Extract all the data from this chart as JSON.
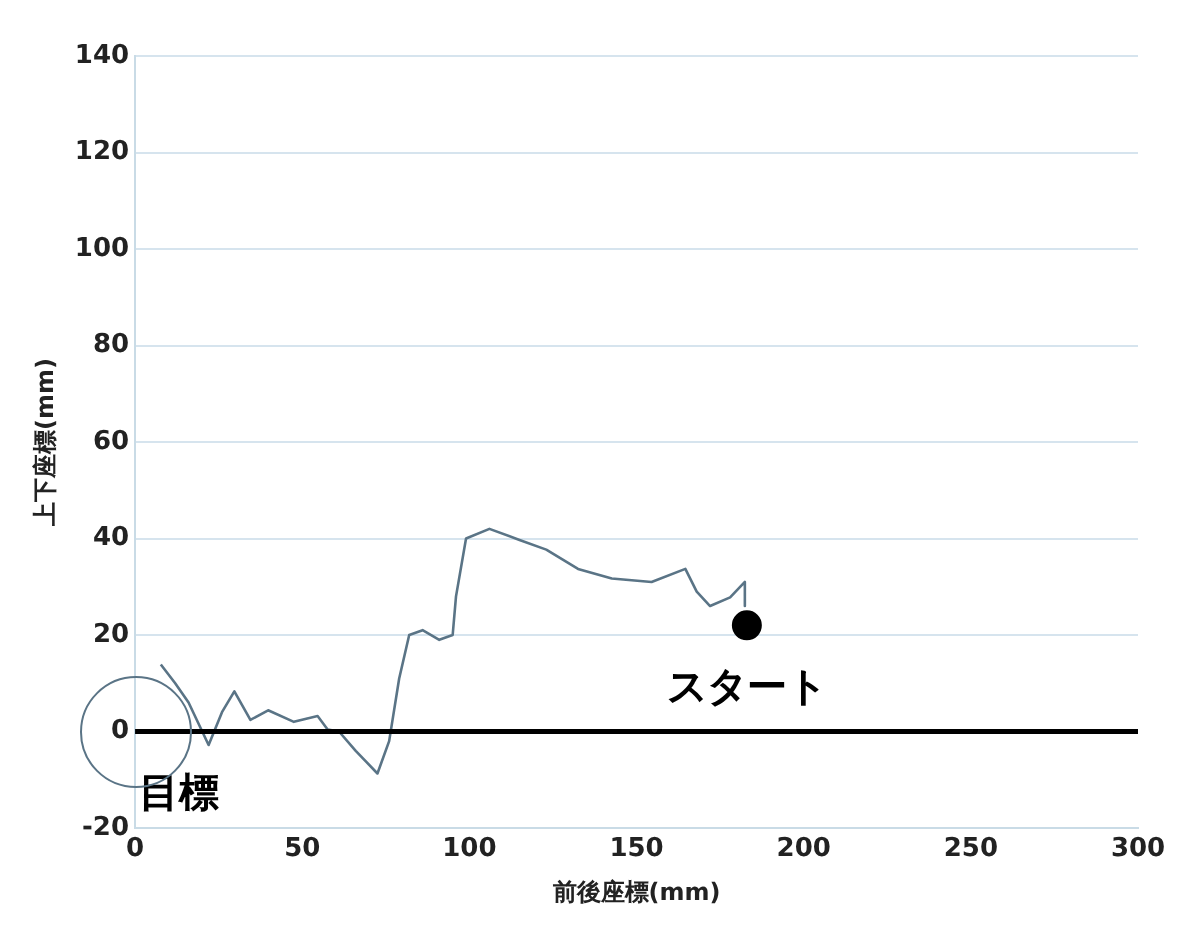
{
  "chart_data": {
    "type": "line",
    "xlabel": "前後座標(mm)",
    "ylabel": "上下座標(mm)",
    "xlim": [
      0,
      300
    ],
    "xticks": [
      0,
      50,
      100,
      150,
      200,
      250,
      300
    ],
    "ylim": [
      -20,
      140
    ],
    "yticks": [
      -20,
      0,
      20,
      40,
      60,
      80,
      100,
      120,
      140
    ],
    "grid": "y",
    "legend": false,
    "series": [
      {
        "type": "line",
        "color": "#5a7486",
        "marker": "none",
        "x": [
          7.7,
          12,
          16,
          22,
          26,
          29.7,
          34.5,
          39.8,
          47.5,
          54.6,
          57.6,
          61,
          66,
          72.5,
          76,
          79,
          82,
          86,
          91,
          95,
          96,
          99,
          106,
          115,
          123,
          132.5,
          142.6,
          154.5,
          164.6,
          168,
          172,
          178,
          182.4,
          182.4
        ],
        "values": [
          13.9,
          10,
          6,
          -2.8,
          4,
          8.3,
          2.4,
          4.4,
          2,
          3.2,
          0.4,
          0,
          -4,
          -8.7,
          -2,
          11,
          20,
          21,
          19,
          20,
          28,
          40,
          42,
          39.7,
          37.7,
          33.7,
          31.7,
          31,
          33.7,
          29,
          26,
          27.8,
          31,
          26
        ]
      },
      {
        "type": "scatter",
        "color": "#000000",
        "marker": "circle",
        "x": [
          183
        ],
        "values": [
          22
        ]
      }
    ],
    "ref_lines": [
      {
        "axis": "y",
        "value": 0,
        "color": "#000000"
      }
    ],
    "annotations": [
      {
        "text": "スタート",
        "x": 183,
        "y": 22
      },
      {
        "text": "目標",
        "x": 0,
        "y": 0
      }
    ]
  }
}
